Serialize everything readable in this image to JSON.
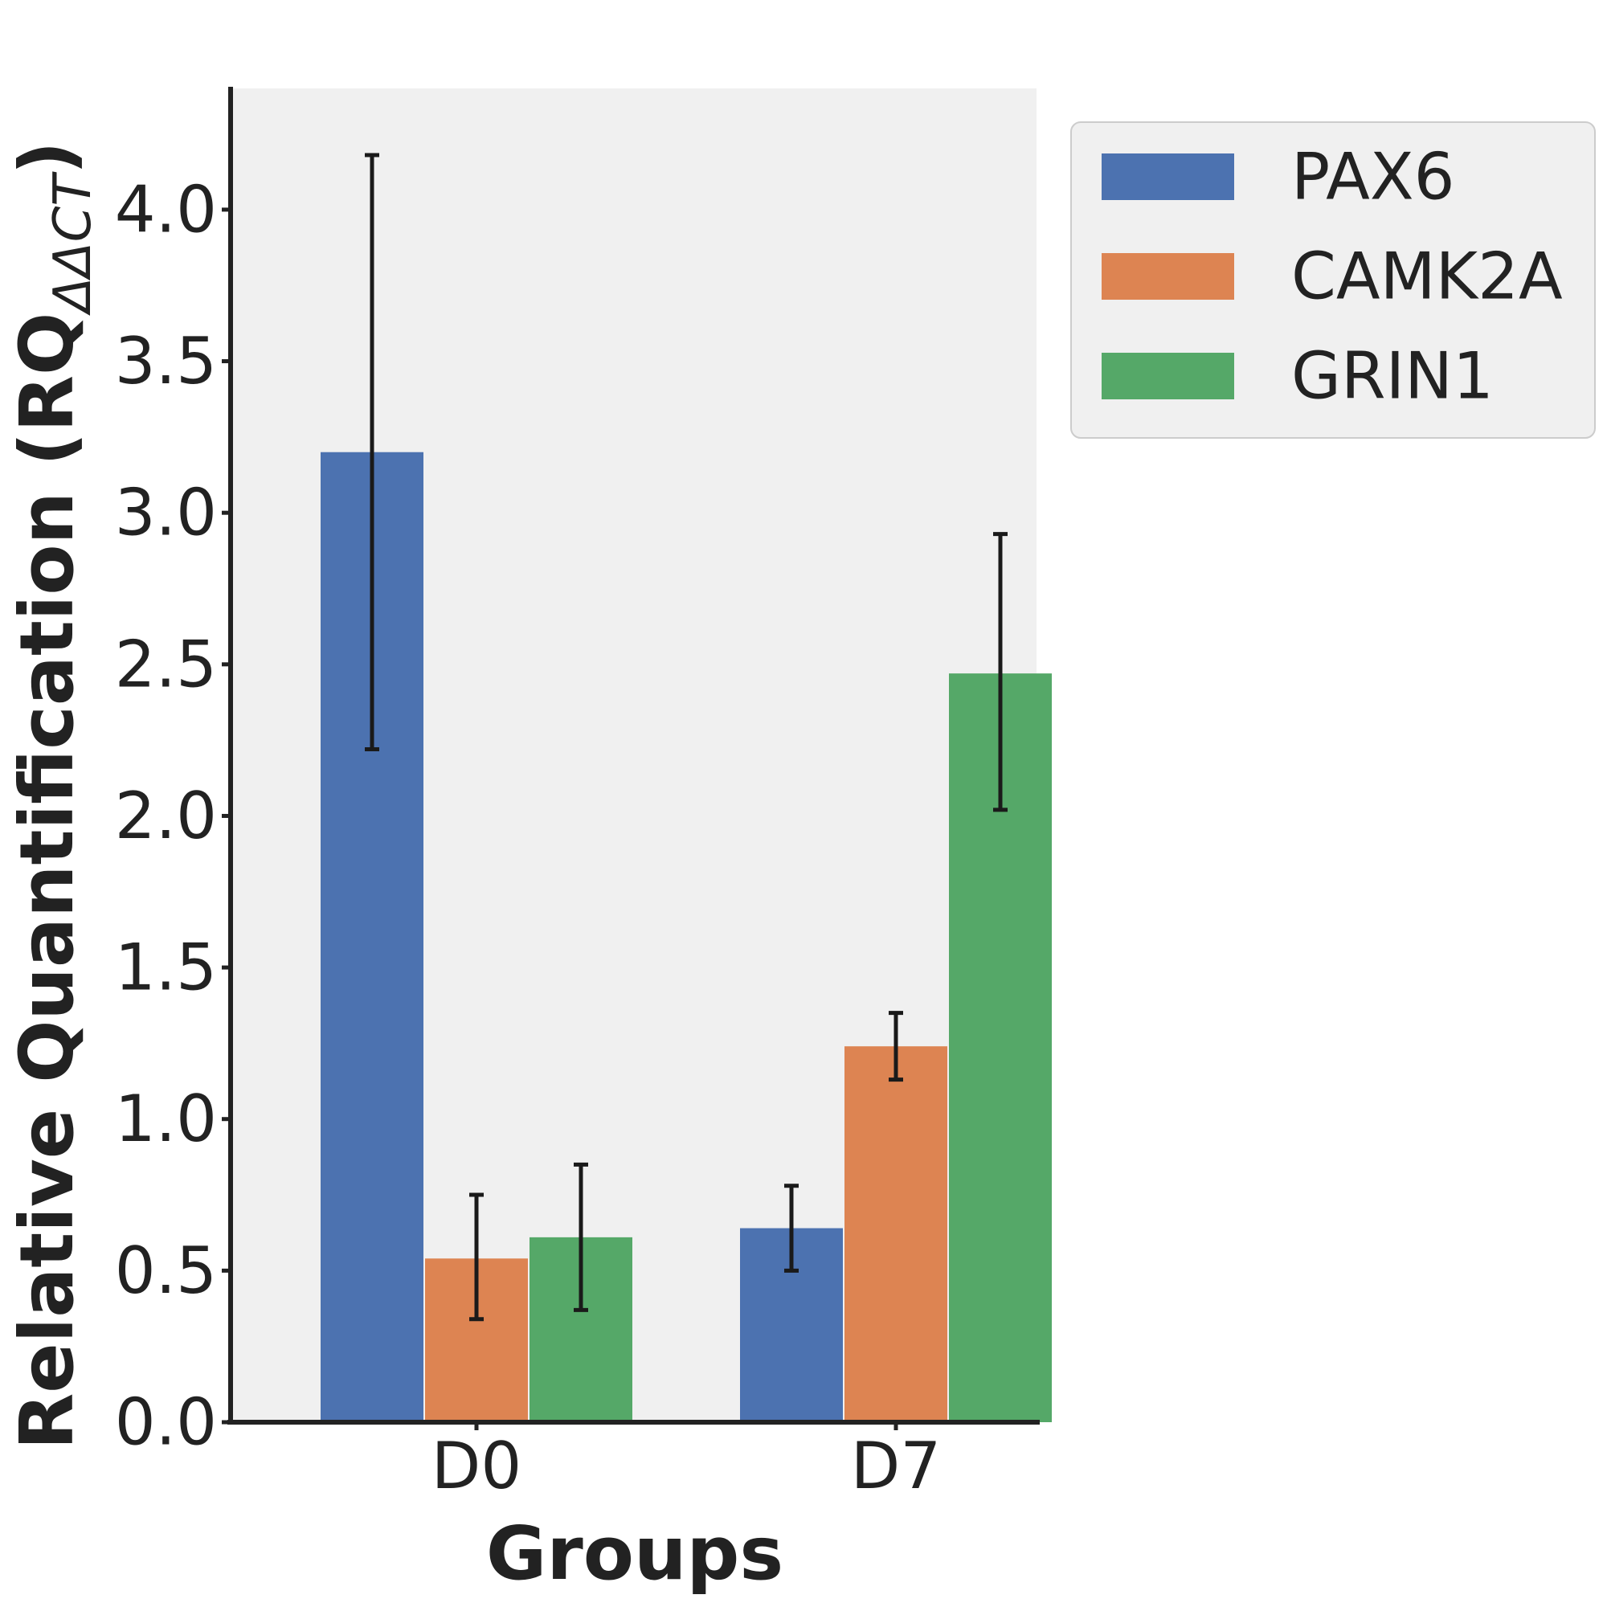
{
  "chart_data": {
    "type": "bar",
    "categories": [
      "D0",
      "D7"
    ],
    "series": [
      {
        "name": "PAX6",
        "color": "#4C72B0",
        "values": [
          3.2,
          0.64
        ],
        "error": [
          [
            2.22,
            4.18
          ],
          [
            0.5,
            0.78
          ]
        ]
      },
      {
        "name": "CAMK2A",
        "color": "#DD8452",
        "values": [
          0.54,
          1.24
        ],
        "error": [
          [
            0.34,
            0.75
          ],
          [
            1.13,
            1.35
          ]
        ]
      },
      {
        "name": "GRIN1",
        "color": "#55A868",
        "values": [
          0.61,
          2.47
        ],
        "error": [
          [
            0.37,
            0.85
          ],
          [
            2.02,
            2.93
          ]
        ]
      }
    ],
    "xlabel": "Groups",
    "ylabel_main": "Relative Quantification (RQ",
    "ylabel_sub": "ΔΔCT",
    "ylabel_close": ")",
    "ylim": [
      0,
      4.4
    ],
    "yticks": [
      "0.0",
      "0.5",
      "1.0",
      "1.5",
      "2.0",
      "2.5",
      "3.0",
      "3.5",
      "4.0"
    ],
    "grid": false,
    "plot_background": "#F0F0F0",
    "legend_position": "outside-right-top"
  }
}
